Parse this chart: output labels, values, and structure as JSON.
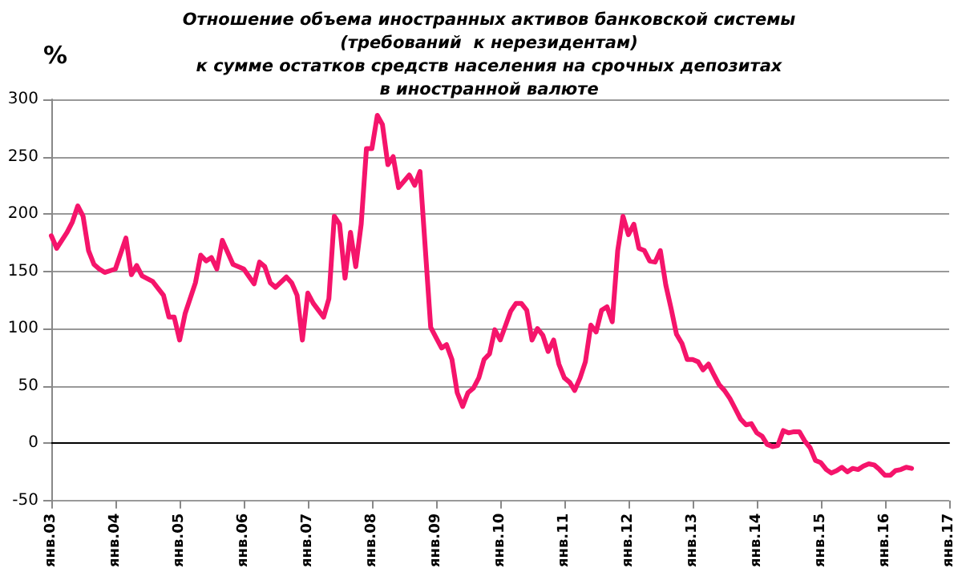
{
  "chart_data": {
    "type": "line",
    "title": "Отношение объема иностранных активов банковской системы\n(требований  к нерезидентам)\nк сумме остатков средств населения на срочных депозитах\nв иностранной валюте",
    "ylabel": "%",
    "x": [
      "2003-01",
      "2003-02",
      "2003-04",
      "2003-05",
      "2003-06",
      "2003-07",
      "2003-08",
      "2003-09",
      "2003-10",
      "2003-11",
      "2004-01",
      "2004-03",
      "2004-04",
      "2004-05",
      "2004-06",
      "2004-08",
      "2004-10",
      "2004-11",
      "2004-12",
      "2005-01",
      "2005-02",
      "2005-04",
      "2005-05",
      "2005-06",
      "2005-07",
      "2005-08",
      "2005-09",
      "2005-11",
      "2006-01",
      "2006-03",
      "2006-04",
      "2006-05",
      "2006-06",
      "2006-07",
      "2006-09",
      "2006-10",
      "2006-11",
      "2006-12",
      "2007-01",
      "2007-02",
      "2007-04",
      "2007-05",
      "2007-06",
      "2007-07",
      "2007-08",
      "2007-09",
      "2007-10",
      "2007-11",
      "2007-12",
      "2008-01",
      "2008-02",
      "2008-03",
      "2008-04",
      "2008-05",
      "2008-06",
      "2008-08",
      "2008-09",
      "2008-10",
      "2008-12",
      "2009-01",
      "2009-02",
      "2009-03",
      "2009-04",
      "2009-05",
      "2009-06",
      "2009-07",
      "2009-08",
      "2009-09",
      "2009-10",
      "2009-11",
      "2009-12",
      "2010-01",
      "2010-02",
      "2010-03",
      "2010-04",
      "2010-05",
      "2010-06",
      "2010-07",
      "2010-08",
      "2010-09",
      "2010-10",
      "2010-11",
      "2010-12",
      "2011-01",
      "2011-02",
      "2011-03",
      "2011-04",
      "2011-05",
      "2011-06",
      "2011-07",
      "2011-08",
      "2011-09",
      "2011-10",
      "2011-11",
      "2011-12",
      "2012-01",
      "2012-02",
      "2012-03",
      "2012-04",
      "2012-05",
      "2012-06",
      "2012-07",
      "2012-08",
      "2012-09",
      "2012-10",
      "2012-11",
      "2012-12",
      "2013-01",
      "2013-02",
      "2013-03",
      "2013-04",
      "2013-05",
      "2013-06",
      "2013-07",
      "2013-08",
      "2013-09",
      "2013-10",
      "2013-11",
      "2013-12",
      "2014-01",
      "2014-02",
      "2014-03",
      "2014-04",
      "2014-05",
      "2014-06",
      "2014-07",
      "2014-08",
      "2014-09",
      "2014-10",
      "2014-11",
      "2014-12",
      "2015-01",
      "2015-02",
      "2015-03",
      "2015-04",
      "2015-05",
      "2015-06",
      "2015-07",
      "2015-08",
      "2015-09",
      "2015-10",
      "2015-11",
      "2015-12",
      "2016-01",
      "2016-02",
      "2016-03",
      "2016-04",
      "2016-05",
      "2016-06"
    ],
    "series": [
      {
        "color": "#f5146b",
        "values": [
          181,
          170,
          184,
          193,
          207,
          198,
          168,
          156,
          152,
          149,
          152,
          179,
          147,
          155,
          146,
          141,
          129,
          110,
          110,
          90,
          113,
          140,
          164,
          159,
          162,
          152,
          177,
          156,
          152,
          139,
          158,
          154,
          140,
          136,
          145,
          140,
          129,
          90,
          131,
          122,
          110,
          126,
          198,
          191,
          144,
          184,
          154,
          191,
          257,
          257,
          286,
          278,
          243,
          250,
          223,
          234,
          225,
          237,
          101,
          92,
          83,
          86,
          73,
          44,
          32,
          44,
          48,
          57,
          73,
          78,
          99,
          90,
          103,
          115,
          122,
          122,
          116,
          90,
          100,
          94,
          80,
          90,
          69,
          57,
          53,
          46,
          57,
          71,
          103,
          97,
          116,
          119,
          106,
          168,
          198,
          182,
          191,
          170,
          168,
          159,
          158,
          168,
          138,
          117,
          95,
          87,
          73,
          73,
          71,
          64,
          69,
          60,
          51,
          46,
          39,
          30,
          21,
          16,
          17,
          9,
          6,
          -1,
          -3,
          -2,
          11,
          9,
          10,
          10,
          2,
          -4,
          -15,
          -17,
          -23,
          -26,
          -24,
          -21,
          -25,
          -22,
          -23,
          -20,
          -18,
          -19,
          -23,
          -28,
          -28,
          -24,
          -23,
          -21,
          -22
        ]
      }
    ],
    "xlim": [
      "2003-01",
      "2017-01"
    ],
    "xticks": [
      {
        "value": "2003-01",
        "label": "янв.03"
      },
      {
        "value": "2004-01",
        "label": "янв.04"
      },
      {
        "value": "2005-01",
        "label": "янв.05"
      },
      {
        "value": "2006-01",
        "label": "янв.06"
      },
      {
        "value": "2007-01",
        "label": "янв.07"
      },
      {
        "value": "2008-01",
        "label": "янв.08"
      },
      {
        "value": "2009-01",
        "label": "янв.09"
      },
      {
        "value": "2010-01",
        "label": "янв.10"
      },
      {
        "value": "2011-01",
        "label": "янв.11"
      },
      {
        "value": "2012-01",
        "label": "янв.12"
      },
      {
        "value": "2013-01",
        "label": "янв.13"
      },
      {
        "value": "2014-01",
        "label": "янв.14"
      },
      {
        "value": "2015-01",
        "label": "янв.15"
      },
      {
        "value": "2016-01",
        "label": "янв.16"
      },
      {
        "value": "2017-01",
        "label": "янв.17"
      }
    ],
    "ylim": [
      -50,
      300
    ],
    "yticks": [
      -50,
      0,
      50,
      100,
      150,
      200,
      250,
      300
    ],
    "grid": "y",
    "marker": "none",
    "line_style": "solid"
  }
}
